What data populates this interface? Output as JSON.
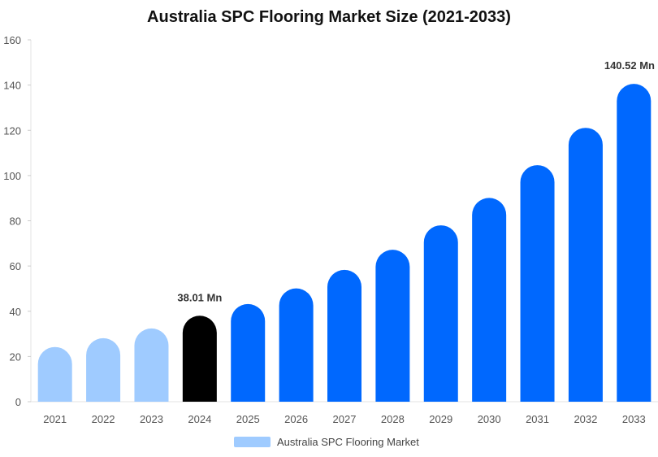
{
  "chart_data": {
    "type": "bar",
    "title": "Australia SPC Flooring Market Size (2021-2033)",
    "categories": [
      "2021",
      "2022",
      "2023",
      "2024",
      "2025",
      "2026",
      "2027",
      "2028",
      "2029",
      "2030",
      "2031",
      "2032",
      "2033"
    ],
    "series": [
      {
        "name": "Australia SPC Flooring Market",
        "values": [
          24.2,
          28.1,
          32.4,
          38.01,
          43.2,
          50.1,
          58.3,
          67.2,
          78.0,
          90.1,
          104.6,
          121.1,
          140.52
        ]
      }
    ],
    "ylim": [
      0,
      160
    ],
    "yticks": [
      0,
      20,
      40,
      60,
      80,
      100,
      120,
      140,
      160
    ],
    "annotations": [
      {
        "category": "2024",
        "label": "38.01 Mn"
      },
      {
        "category": "2033",
        "label": "140.52 Mn"
      }
    ],
    "grid": false,
    "legend_position": "bottom",
    "colors": {
      "historical": "#9fcbff",
      "base_year": "#000000",
      "forecast": "#0068fe"
    },
    "historical_categories": [
      "2021",
      "2022",
      "2023"
    ],
    "base_year_category": "2024"
  }
}
